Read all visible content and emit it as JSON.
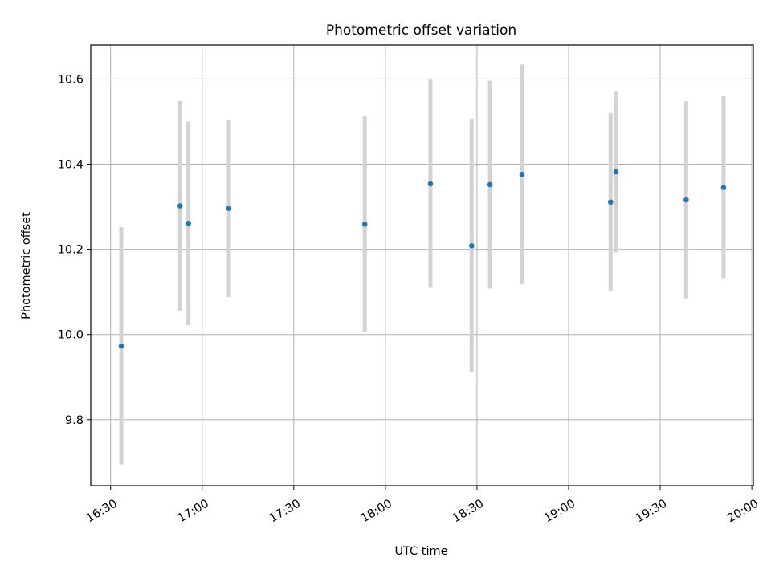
{
  "chart_data": {
    "type": "scatter",
    "title": "Photometric offset variation",
    "xlabel": "UTC time",
    "ylabel": "Photometric offset",
    "x_tick_labels": [
      "16:30",
      "17:00",
      "17:30",
      "18:00",
      "18:30",
      "19:00",
      "19:30",
      "20:00"
    ],
    "x_tick_minutes": [
      990,
      1020,
      1050,
      1080,
      1110,
      1140,
      1170,
      1200
    ],
    "xlim_minutes": [
      983.5,
      1200.5
    ],
    "y_ticks": [
      9.8,
      10.0,
      10.2,
      10.4,
      10.6
    ],
    "y_tick_labels": [
      "9.8",
      "10.0",
      "10.2",
      "10.4",
      "10.6"
    ],
    "ylim": [
      9.645,
      10.68
    ],
    "grid": true,
    "point_color": "#1f77b4",
    "errorbar_color": "#d3d3d3",
    "points": [
      {
        "time": "16:33:30",
        "y": 9.973,
        "y_low": 9.695,
        "y_high": 10.252
      },
      {
        "time": "16:52:45",
        "y": 10.302,
        "y_low": 10.056,
        "y_high": 10.548
      },
      {
        "time": "16:55:30",
        "y": 10.261,
        "y_low": 10.022,
        "y_high": 10.5
      },
      {
        "time": "17:08:45",
        "y": 10.296,
        "y_low": 10.088,
        "y_high": 10.504
      },
      {
        "time": "17:53:15",
        "y": 10.259,
        "y_low": 10.006,
        "y_high": 10.512
      },
      {
        "time": "18:14:45",
        "y": 10.354,
        "y_low": 10.11,
        "y_high": 10.6
      },
      {
        "time": "18:28:15",
        "y": 10.208,
        "y_low": 9.91,
        "y_high": 10.507
      },
      {
        "time": "18:34:15",
        "y": 10.352,
        "y_low": 10.108,
        "y_high": 10.596
      },
      {
        "time": "18:44:45",
        "y": 10.376,
        "y_low": 10.118,
        "y_high": 10.634
      },
      {
        "time": "19:13:45",
        "y": 10.311,
        "y_low": 10.102,
        "y_high": 10.52
      },
      {
        "time": "19:15:30",
        "y": 10.382,
        "y_low": 10.193,
        "y_high": 10.572
      },
      {
        "time": "19:38:30",
        "y": 10.316,
        "y_low": 10.085,
        "y_high": 10.548
      },
      {
        "time": "19:50:45",
        "y": 10.345,
        "y_low": 10.132,
        "y_high": 10.559
      }
    ]
  }
}
